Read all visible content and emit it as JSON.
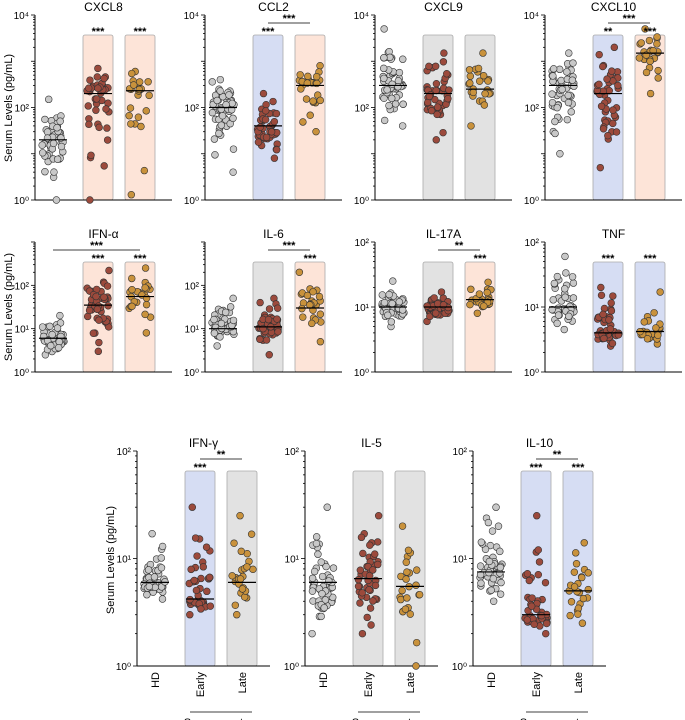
{
  "figure": {
    "y_axis_label": "Serum Levels (pg/mL)",
    "group_labels": [
      "HD",
      "Early",
      "Late"
    ],
    "bottom_label": "Seroconverters",
    "colors": {
      "hd": "#c8c8c8",
      "early": "#9c4a3c",
      "late": "#c9923c",
      "box_increase": "#fde4d8",
      "box_decrease": "#d6ddf3",
      "box_neutral": "#e2e2e2",
      "box_stroke": "#aaaaaa",
      "dot_stroke": "#333333"
    }
  },
  "chart_data": [
    {
      "type": "scatter",
      "title": "CXCL8",
      "scale": "log10",
      "ylim": [
        1,
        10000
      ],
      "tick_labels": [
        "10⁰",
        "10²",
        "10⁴"
      ],
      "tick_values": [
        1,
        100,
        10000
      ],
      "box_colors": [
        "increase",
        "increase"
      ],
      "sig": [
        {
          "text": "***",
          "group": 1
        },
        {
          "text": "***",
          "group": 2
        }
      ],
      "series": [
        {
          "name": "HD",
          "median": 20,
          "range": [
            1,
            150
          ],
          "n": 50
        },
        {
          "name": "Early",
          "median": 200,
          "range": [
            1,
            700
          ],
          "n": 45
        },
        {
          "name": "Late",
          "median": 230,
          "range": [
            1.3,
            600
          ],
          "n": 24
        }
      ]
    },
    {
      "type": "scatter",
      "title": "CCL2",
      "scale": "log10",
      "ylim": [
        1,
        10000
      ],
      "tick_labels": [
        "10⁰",
        "10²",
        "10⁴"
      ],
      "tick_values": [
        1,
        100,
        10000
      ],
      "box_colors": [
        "decrease",
        "increase"
      ],
      "sig": [
        {
          "text": "***",
          "group": 1
        },
        {
          "text": "***",
          "group": 1,
          "to": 2,
          "bracket": true
        }
      ],
      "series": [
        {
          "name": "HD",
          "median": 100,
          "range": [
            4,
            400
          ],
          "n": 55
        },
        {
          "name": "Early",
          "median": 40,
          "range": [
            8,
            200
          ],
          "n": 45
        },
        {
          "name": "Late",
          "median": 300,
          "range": [
            30,
            800
          ],
          "n": 25
        }
      ]
    },
    {
      "type": "scatter",
      "title": "CXCL9",
      "scale": "log10",
      "ylim": [
        1,
        10000
      ],
      "tick_labels": [
        "10⁰",
        "10²",
        "10⁴"
      ],
      "tick_values": [
        1,
        100,
        10000
      ],
      "box_colors": [
        "neutral",
        "neutral"
      ],
      "sig": [],
      "series": [
        {
          "name": "HD",
          "median": 300,
          "range": [
            40,
            5000
          ],
          "n": 55
        },
        {
          "name": "Early",
          "median": 200,
          "range": [
            20,
            1500
          ],
          "n": 45
        },
        {
          "name": "Late",
          "median": 250,
          "range": [
            40,
            1500
          ],
          "n": 25
        }
      ]
    },
    {
      "type": "scatter",
      "title": "CXCL10",
      "scale": "log10",
      "ylim": [
        1,
        10000
      ],
      "tick_labels": [
        "10⁰",
        "10²",
        "10⁴"
      ],
      "tick_values": [
        1,
        100,
        10000
      ],
      "box_colors": [
        "decrease",
        "increase"
      ],
      "sig": [
        {
          "text": "**",
          "group": 1
        },
        {
          "text": "***",
          "group": 2
        },
        {
          "text": "***",
          "group": 1,
          "to": 2,
          "bracket": true
        }
      ],
      "series": [
        {
          "name": "HD",
          "median": 300,
          "range": [
            10,
            1500
          ],
          "n": 55
        },
        {
          "name": "Early",
          "median": 200,
          "range": [
            5,
            2000
          ],
          "n": 45
        },
        {
          "name": "Late",
          "median": 1500,
          "range": [
            200,
            5000
          ],
          "n": 25
        }
      ]
    },
    {
      "type": "scatter",
      "title": "IFN-α",
      "scale": "log10",
      "ylim": [
        1,
        1000
      ],
      "tick_labels": [
        "10⁰",
        "10¹",
        "10²"
      ],
      "tick_values": [
        1,
        10,
        100
      ],
      "box_colors": [
        "increase",
        "increase"
      ],
      "sig": [
        {
          "text": "***",
          "group": 1
        },
        {
          "text": "***",
          "group": 2
        },
        {
          "text": "***",
          "group": 0,
          "to": 2,
          "bracket": true
        }
      ],
      "series": [
        {
          "name": "HD",
          "median": 6,
          "range": [
            2.5,
            20
          ],
          "n": 45
        },
        {
          "name": "Early",
          "median": 35,
          "range": [
            3,
            220
          ],
          "n": 45
        },
        {
          "name": "Late",
          "median": 55,
          "range": [
            8,
            250
          ],
          "n": 25
        }
      ]
    },
    {
      "type": "scatter",
      "title": "IL-6",
      "scale": "log10",
      "ylim": [
        1,
        1000
      ],
      "tick_labels": [
        "10⁰",
        "10¹",
        "10²"
      ],
      "tick_values": [
        1,
        10,
        100
      ],
      "box_colors": [
        "neutral",
        "increase"
      ],
      "sig": [
        {
          "text": "***",
          "group": 2
        },
        {
          "text": "***",
          "group": 1,
          "to": 2,
          "bracket": true
        }
      ],
      "series": [
        {
          "name": "HD",
          "median": 10,
          "range": [
            4,
            50
          ],
          "n": 55
        },
        {
          "name": "Early",
          "median": 11,
          "range": [
            2.5,
            50
          ],
          "n": 45
        },
        {
          "name": "Late",
          "median": 30,
          "range": [
            5,
            200
          ],
          "n": 25
        }
      ]
    },
    {
      "type": "scatter",
      "title": "IL-17A",
      "scale": "log10",
      "ylim": [
        1,
        100
      ],
      "tick_labels": [
        "10⁰",
        "10¹",
        "10²"
      ],
      "tick_values": [
        1,
        10,
        100
      ],
      "box_colors": [
        "neutral",
        "increase"
      ],
      "sig": [
        {
          "text": "***",
          "group": 2
        },
        {
          "text": "**",
          "group": 1,
          "to": 2,
          "bracket": true
        }
      ],
      "series": [
        {
          "name": "HD",
          "median": 10,
          "range": [
            5,
            25
          ],
          "n": 55
        },
        {
          "name": "Early",
          "median": 10,
          "range": [
            6,
            17
          ],
          "n": 45
        },
        {
          "name": "Late",
          "median": 13,
          "range": [
            8,
            24
          ],
          "n": 25
        }
      ]
    },
    {
      "type": "scatter",
      "title": "TNF",
      "scale": "log10",
      "ylim": [
        1,
        100
      ],
      "tick_labels": [
        "10⁰",
        "10¹",
        "10²"
      ],
      "tick_values": [
        1,
        10,
        100
      ],
      "box_colors": [
        "decrease",
        "decrease"
      ],
      "sig": [
        {
          "text": "***",
          "group": 1
        },
        {
          "text": "***",
          "group": 2
        }
      ],
      "series": [
        {
          "name": "HD",
          "median": 10,
          "range": [
            4.5,
            60
          ],
          "n": 45
        },
        {
          "name": "Early",
          "median": 4,
          "range": [
            2.5,
            20
          ],
          "n": 45
        },
        {
          "name": "Late",
          "median": 4.2,
          "range": [
            2.7,
            17
          ],
          "n": 25
        }
      ]
    },
    {
      "type": "scatter",
      "title": "IFN-γ",
      "scale": "log10",
      "ylim": [
        1,
        100
      ],
      "tick_labels": [
        "10⁰",
        "10¹",
        "10²"
      ],
      "tick_values": [
        1,
        10,
        100
      ],
      "box_colors": [
        "decrease",
        "neutral"
      ],
      "sig": [
        {
          "text": "***",
          "group": 1
        },
        {
          "text": "**",
          "group": 1,
          "to": 2,
          "bracket": true
        }
      ],
      "series": [
        {
          "name": "HD",
          "median": 6,
          "range": [
            4.2,
            17
          ],
          "n": 50
        },
        {
          "name": "Early",
          "median": 4.2,
          "range": [
            3,
            30
          ],
          "n": 45
        },
        {
          "name": "Late",
          "median": 6,
          "range": [
            3,
            25
          ],
          "n": 25
        }
      ]
    },
    {
      "type": "scatter",
      "title": "IL-5",
      "scale": "log10",
      "ylim": [
        1,
        100
      ],
      "tick_labels": [
        "10⁰",
        "10¹",
        "10²"
      ],
      "tick_values": [
        1,
        10,
        100
      ],
      "box_colors": [
        "neutral",
        "neutral"
      ],
      "sig": [],
      "series": [
        {
          "name": "HD",
          "median": 6,
          "range": [
            2,
            30
          ],
          "n": 55
        },
        {
          "name": "Early",
          "median": 6.5,
          "range": [
            2,
            25
          ],
          "n": 45
        },
        {
          "name": "Late",
          "median": 5.5,
          "range": [
            1,
            20
          ],
          "n": 25
        }
      ]
    },
    {
      "type": "scatter",
      "title": "IL-10",
      "scale": "log10",
      "ylim": [
        1,
        100
      ],
      "tick_labels": [
        "10⁰",
        "10¹",
        "10²"
      ],
      "tick_values": [
        1,
        10,
        100
      ],
      "box_colors": [
        "decrease",
        "decrease"
      ],
      "sig": [
        {
          "text": "***",
          "group": 1
        },
        {
          "text": "***",
          "group": 2
        },
        {
          "text": "**",
          "group": 1,
          "to": 2,
          "bracket": true
        }
      ],
      "series": [
        {
          "name": "HD",
          "median": 7.5,
          "range": [
            4,
            30
          ],
          "n": 50
        },
        {
          "name": "Early",
          "median": 3,
          "range": [
            2,
            25
          ],
          "n": 45
        },
        {
          "name": "Late",
          "median": 5,
          "range": [
            2.5,
            14
          ],
          "n": 25
        }
      ]
    }
  ]
}
